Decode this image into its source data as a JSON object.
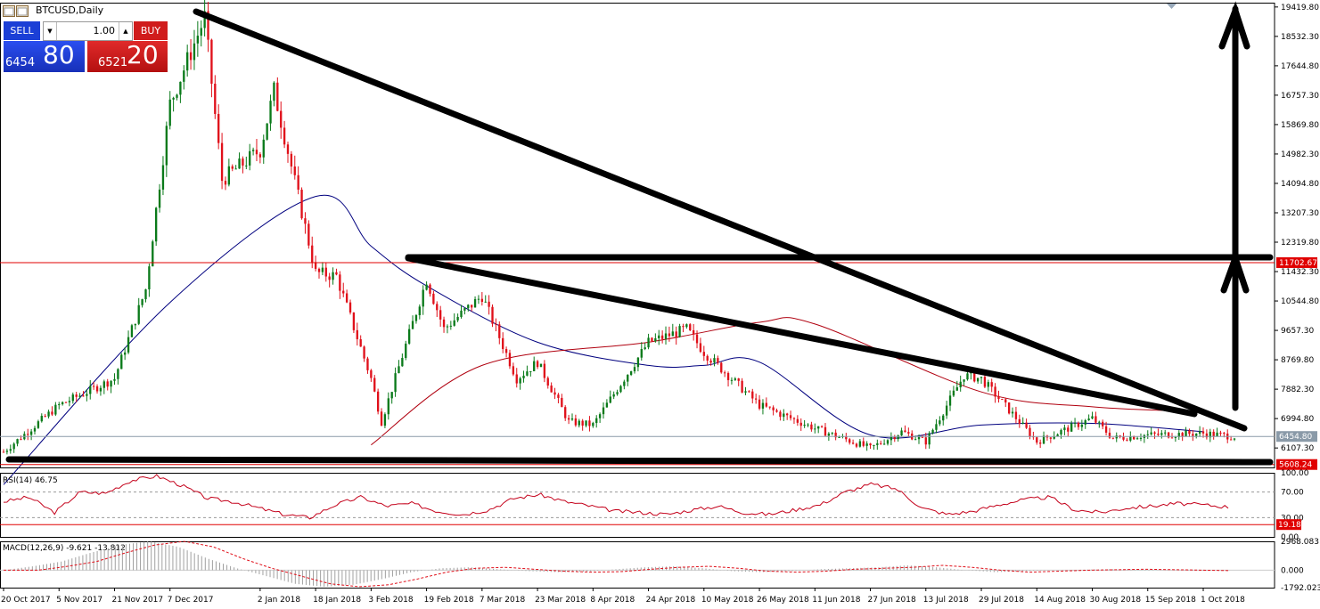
{
  "window": {
    "title": "BTCUSD,Daily"
  },
  "trade_panel": {
    "sell_label": "SELL",
    "buy_label": "BUY",
    "lot_value": "1.00",
    "bid_prefix": "6454",
    "bid_big": "80",
    "ask_prefix": "6521",
    "ask_big": "20",
    "sell_color": "#1b3fd6",
    "buy_color": "#d01c1c"
  },
  "chart_data": [
    {
      "type": "candlestick",
      "symbol": "BTCUSD",
      "timeframe": "Daily",
      "y_ticks": [
        "19419.80",
        "18532.30",
        "17644.80",
        "16757.30",
        "15869.80",
        "14982.30",
        "14094.80",
        "13207.30",
        "12319.80",
        "11432.30",
        "10544.80",
        "9657.30",
        "8769.80",
        "7882.30",
        "6994.80",
        "6107.30"
      ],
      "y_tick_values": [
        19419.8,
        18532.3,
        17644.8,
        16757.3,
        15869.8,
        14982.3,
        14094.8,
        13207.3,
        12319.8,
        11432.3,
        10544.8,
        9657.3,
        8769.8,
        7882.3,
        6994.8,
        6107.3
      ],
      "ylim": [
        5520,
        19550
      ],
      "x_ticks": [
        "20 Oct 2017",
        "5 Nov 2017",
        "21 Nov 2017",
        "7 Dec 2017",
        "2 Jan 2018",
        "18 Jan 2018",
        "3 Feb 2018",
        "19 Feb 2018",
        "7 Mar 2018",
        "23 Mar 2018",
        "8 Apr 2018",
        "24 Apr 2018",
        "10 May 2018",
        "26 May 2018",
        "11 Jun 2018",
        "27 Jun 2018",
        "13 Jul 2018",
        "29 Jul 2018",
        "14 Aug 2018",
        "30 Aug 2018",
        "15 Sep 2018",
        "1 Oct 2018"
      ],
      "price_markers": [
        {
          "label": "11702.67",
          "value": 11702.67,
          "color": "#e00000"
        },
        {
          "label": "6454.80",
          "value": 6454.8,
          "color": "#8a9aa8"
        },
        {
          "label": "5608.24",
          "value": 5608.24,
          "color": "#e00000"
        }
      ],
      "key_closes": [
        [
          "20 Oct 2017",
          5990
        ],
        [
          "5 Nov 2017",
          7400
        ],
        [
          "21 Nov 2017",
          8200
        ],
        [
          "30 Nov 2017",
          10900
        ],
        [
          "7 Dec 2017",
          16500
        ],
        [
          "17 Dec 2017",
          19100
        ],
        [
          "22 Dec 2017",
          14200
        ],
        [
          "2 Jan 2018",
          15100
        ],
        [
          "6 Jan 2018",
          16900
        ],
        [
          "18 Jan 2018",
          11400
        ],
        [
          "24 Jan 2018",
          11300
        ],
        [
          "3 Feb 2018",
          8200
        ],
        [
          "6 Feb 2018",
          6900
        ],
        [
          "19 Feb 2018",
          11200
        ],
        [
          "24 Feb 2018",
          9700
        ],
        [
          "7 Mar 2018",
          10700
        ],
        [
          "17 Mar 2018",
          8200
        ],
        [
          "23 Mar 2018",
          8700
        ],
        [
          "1 Apr 2018",
          6900
        ],
        [
          "8 Apr 2018",
          6800
        ],
        [
          "24 Apr 2018",
          9300
        ],
        [
          "5 May 2018",
          9700
        ],
        [
          "10 May 2018",
          9000
        ],
        [
          "26 May 2018",
          7400
        ],
        [
          "11 Jun 2018",
          6700
        ],
        [
          "27 Jun 2018",
          6100
        ],
        [
          "6 Jul 2018",
          6600
        ],
        [
          "13 Jul 2018",
          6300
        ],
        [
          "24 Jul 2018",
          8300
        ],
        [
          "29 Jul 2018",
          8200
        ],
        [
          "14 Aug 2018",
          6300
        ],
        [
          "30 Aug 2018",
          7000
        ],
        [
          "5 Sep 2018",
          6400
        ],
        [
          "15 Sep 2018",
          6500
        ],
        [
          "1 Oct 2018",
          6550
        ],
        [
          "10 Oct 2018",
          6454.8
        ]
      ],
      "moving_averages": [
        {
          "color": "#00007f",
          "key_values": [
            [
              "20 Oct 2017",
              5000
            ],
            [
              "7 Dec 2017",
              10500
            ],
            [
              "18 Jan 2018",
              13700
            ],
            [
              "3 Feb 2018",
              12200
            ],
            [
              "19 Feb 2018",
              11000
            ],
            [
              "23 Mar 2018",
              9300
            ],
            [
              "24 Apr 2018",
              8600
            ],
            [
              "10 May 2018",
              8600
            ],
            [
              "26 May 2018",
              8700
            ],
            [
              "27 Jun 2018",
              6500
            ],
            [
              "29 Jul 2018",
              6800
            ],
            [
              "30 Aug 2018",
              6850
            ],
            [
              "1 Oct 2018",
              6600
            ]
          ]
        },
        {
          "color": "#b0000f",
          "key_values": [
            [
              "3 Feb 2018",
              6200
            ],
            [
              "7 Mar 2018",
              8600
            ],
            [
              "24 Apr 2018",
              9300
            ],
            [
              "26 May 2018",
              9900
            ],
            [
              "11 Jun 2018",
              9850
            ],
            [
              "29 Jul 2018",
              7800
            ],
            [
              "30 Aug 2018",
              7350
            ],
            [
              "1 Oct 2018",
              7200
            ]
          ]
        }
      ]
    },
    {
      "type": "line",
      "name": "RSI(14) 46.75",
      "y_ticks": [
        "100.00",
        "70.00",
        "30.00",
        "0.00"
      ],
      "ylim": [
        0,
        100
      ],
      "levels": [
        70,
        30
      ],
      "marker": {
        "label": "19.18",
        "value": 19.18,
        "color": "#e00000"
      },
      "key_values": [
        55,
        62,
        38,
        70,
        68,
        88,
        95,
        80,
        60,
        55,
        45,
        35,
        30,
        50,
        62,
        48,
        52,
        40,
        35,
        42,
        60,
        66,
        55,
        48,
        40,
        38,
        35,
        42,
        48,
        38,
        35,
        42,
        50,
        70,
        82,
        75,
        45,
        35,
        40,
        50,
        58,
        62,
        42,
        38,
        45,
        48,
        52,
        50,
        46.75
      ]
    },
    {
      "type": "histogram",
      "name": "MACD(12,26,9) -9.621 -13.812",
      "y_ticks": [
        "2968.083",
        "0.000",
        "-1792.023"
      ],
      "ylim": [
        -1792.023,
        2968.083
      ],
      "key_values": [
        0,
        400,
        900,
        1800,
        2600,
        2968,
        2400,
        1200,
        200,
        -600,
        -1400,
        -1700,
        -1500,
        -900,
        -200,
        200,
        300,
        100,
        -100,
        -200,
        -150,
        100,
        300,
        400,
        200,
        -100,
        -200,
        -100,
        100,
        200,
        300,
        500,
        300,
        0,
        -200,
        -100,
        0,
        50,
        100,
        50,
        0,
        -50,
        -9.621
      ]
    }
  ],
  "annotations": {
    "trendlines_color": "#000000"
  }
}
